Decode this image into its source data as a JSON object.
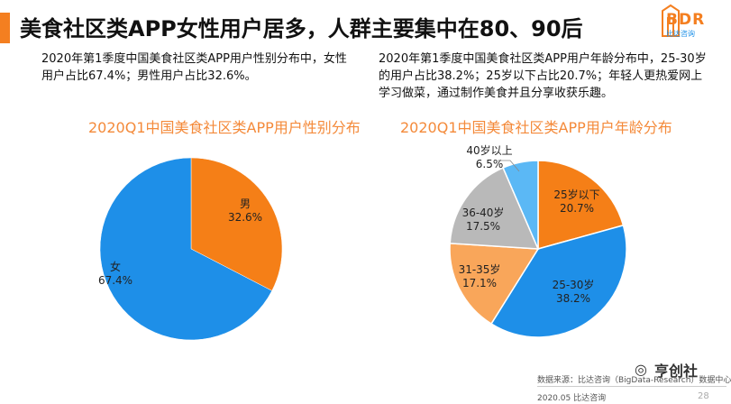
{
  "header": {
    "title": "美食社区类APP女性用户居多，人群主要集中在80、90后",
    "logo_text": "BDR",
    "logo_sub": "比达咨询"
  },
  "left_text": "2020年第1季度中国美食社区类APP用户性别分布中，女性用户占比67.4%；男性用户占比32.6%。",
  "right_text": "2020年第1季度中国美食社区类APP用户年龄分布中，25-30岁的用户占比38.2%；25岁以下占比20.7%；年轻人更热爱网上学习做菜，通过制作美食并且分享收获乐趣。",
  "chart_data": [
    {
      "type": "pie",
      "title": "2020Q1中国美食社区类APP用户性别分布",
      "slices": [
        {
          "label": "男",
          "value": 32.6,
          "text": "32.6%",
          "color": "#f57f17"
        },
        {
          "label": "女",
          "value": 67.4,
          "text": "67.4%",
          "color": "#1e8fe8"
        }
      ]
    },
    {
      "type": "pie",
      "title": "2020Q1中国美食社区类APP用户年龄分布",
      "slices": [
        {
          "label": "25岁以下",
          "value": 20.7,
          "text": "20.7%",
          "color": "#f57f17"
        },
        {
          "label": "25-30岁",
          "value": 38.2,
          "text": "38.2%",
          "color": "#1e8fe8"
        },
        {
          "label": "31-35岁",
          "value": 17.1,
          "text": "17.1%",
          "color": "#f9a65a"
        },
        {
          "label": "36-40岁",
          "value": 17.5,
          "text": "17.5%",
          "color": "#b9b9b9"
        },
        {
          "label": "40岁以上",
          "value": 6.5,
          "text": "6.5%",
          "color": "#5bb8f5"
        }
      ]
    }
  ],
  "footer": {
    "source": "数据来源：比达咨询（BigData-Research）数据中心",
    "date": "2020.05 比达咨询",
    "page": "28",
    "watermark": "亨创社"
  }
}
